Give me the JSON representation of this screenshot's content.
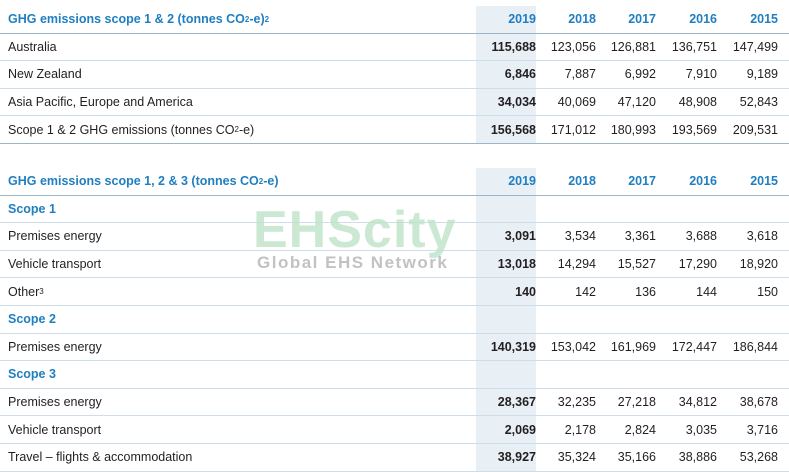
{
  "table1": {
    "title_main": "GHG emissions scope 1 & 2 (tonnes CO",
    "title_sub": "2",
    "title_end": "-e)",
    "title_sup": "2",
    "years": [
      "2019",
      "2018",
      "2017",
      "2016",
      "2015"
    ],
    "rows": [
      {
        "label": "Australia",
        "values": [
          "115,688",
          "123,056",
          "126,881",
          "136,751",
          "147,499"
        ]
      },
      {
        "label": "New Zealand",
        "values": [
          "6,846",
          "7,887",
          "6,992",
          "7,910",
          "9,189"
        ]
      },
      {
        "label": "Asia Pacific, Europe and America",
        "values": [
          "34,034",
          "40,069",
          "47,120",
          "48,908",
          "52,843"
        ]
      }
    ],
    "total": {
      "label_main": "Scope 1 & 2 GHG emissions (tonnes CO",
      "label_sub": "2",
      "label_end": "-e)",
      "values": [
        "156,568",
        "171,012",
        "180,993",
        "193,569",
        "209,531"
      ]
    }
  },
  "table2": {
    "title_main": "GHG emissions scope 1, 2 & 3 (tonnes CO",
    "title_sub": "2",
    "title_end": "-e)",
    "years": [
      "2019",
      "2018",
      "2017",
      "2016",
      "2015"
    ],
    "scope1": {
      "label": "Scope 1",
      "rows": [
        {
          "label": "Premises energy",
          "values": [
            "3,091",
            "3,534",
            "3,361",
            "3,688",
            "3,618"
          ]
        },
        {
          "label": "Vehicle transport",
          "values": [
            "13,018",
            "14,294",
            "15,527",
            "17,290",
            "18,920"
          ]
        },
        {
          "label": "Other",
          "sup": "3",
          "values": [
            "140",
            "142",
            "136",
            "144",
            "150"
          ]
        }
      ]
    },
    "scope2": {
      "label": "Scope 2",
      "rows": [
        {
          "label": "Premises energy",
          "values": [
            "140,319",
            "153,042",
            "161,969",
            "172,447",
            "186,844"
          ]
        }
      ]
    },
    "scope3": {
      "label": "Scope 3",
      "rows": [
        {
          "label": "Premises energy",
          "values": [
            "28,367",
            "32,235",
            "27,218",
            "34,812",
            "38,678"
          ]
        },
        {
          "label": "Vehicle transport",
          "values": [
            "2,069",
            "2,178",
            "2,824",
            "3,035",
            "3,716"
          ]
        },
        {
          "label": "Travel – flights & accommodation",
          "values": [
            "38,927",
            "35,324",
            "35,166",
            "38,886",
            "53,268"
          ]
        }
      ]
    }
  },
  "watermark": {
    "brand": "EHScity",
    "tagline": "Global EHS Network"
  },
  "colors": {
    "header_blue": "#1f7fc1",
    "highlight_column": "#e8eff5",
    "watermark_green": "#bfe3c8"
  }
}
